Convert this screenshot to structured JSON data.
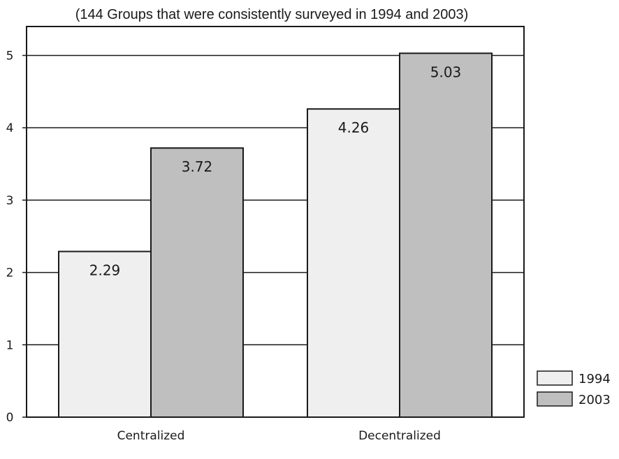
{
  "chart_data": {
    "type": "bar",
    "title": "",
    "subtitle": "(144 Groups that were consistently surveyed in 1994 and 2003)",
    "xlabel": "",
    "ylabel": "",
    "categories": [
      "Centralized",
      "Decentralized"
    ],
    "series": [
      {
        "name": "1994",
        "values": [
          2.29,
          4.26
        ],
        "color": "#efefef"
      },
      {
        "name": "2003",
        "values": [
          3.72,
          5.03
        ],
        "color": "#bfbfbf"
      }
    ],
    "ylim": [
      0,
      5.4
    ],
    "yticks": [
      "0",
      "1",
      "2",
      "3",
      "4",
      "5"
    ],
    "data_labels": [
      [
        "2.29",
        "4.26"
      ],
      [
        "3.72",
        "5.03"
      ]
    ],
    "grid": true,
    "legend": "bottom-right"
  }
}
